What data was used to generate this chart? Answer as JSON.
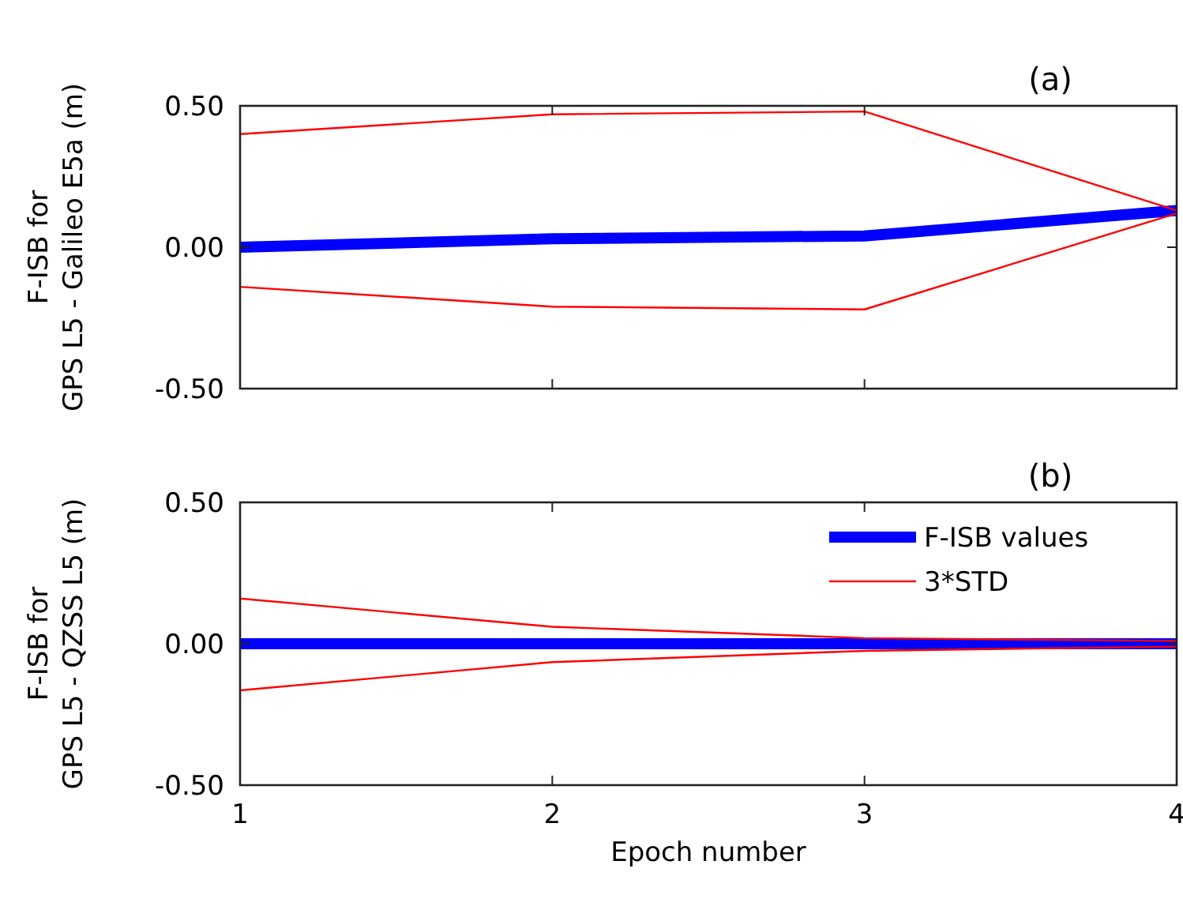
{
  "chart_data": [
    {
      "type": "line",
      "title": "(a)",
      "ylabel": "F-ISB for\nGPS L5 - Galileo E5a (m)",
      "x": [
        1,
        2,
        3,
        4
      ],
      "xlim": [
        1,
        4
      ],
      "xticks": [
        {
          "value": 1,
          "label": null
        },
        {
          "value": 2,
          "label": null
        },
        {
          "value": 3,
          "label": null
        },
        {
          "value": 4,
          "label": null
        }
      ],
      "ylim": [
        -0.5,
        0.5
      ],
      "yticks": [
        {
          "value": -0.5,
          "label": "-0.50"
        },
        {
          "value": 0,
          "label": "0.00"
        },
        {
          "value": 0.5,
          "label": "0.50"
        }
      ],
      "tick_labels": "y",
      "legend": false,
      "grid": false,
      "series": [
        {
          "color": "#0000ff",
          "values": [
            0.0,
            0.03,
            0.04,
            0.13
          ]
        },
        {
          "color": "#ff0000",
          "values": [
            0.4,
            0.47,
            0.48,
            0.13
          ]
        },
        {
          "color": "#ff0000",
          "values": [
            -0.14,
            -0.21,
            -0.22,
            0.12
          ]
        }
      ]
    },
    {
      "type": "line",
      "title": "(b)",
      "xlabel": "Epoch number",
      "ylabel": "F-ISB for\nGPS L5 - QZSS L5 (m)",
      "x": [
        1,
        2,
        3,
        4
      ],
      "xlim": [
        1,
        4
      ],
      "xticks": [
        1,
        2,
        3,
        4
      ],
      "ylim": [
        -0.5,
        0.5
      ],
      "yticks": [
        {
          "value": -0.5,
          "label": "-0.50"
        },
        {
          "value": 0,
          "label": "0.00"
        },
        {
          "value": 0.5,
          "label": "0.50"
        }
      ],
      "legend": "top right",
      "grid": false,
      "series": [
        {
          "name": "F-ISB values",
          "color": "#0000ff",
          "values": [
            0.0,
            0.0,
            0.0,
            0.0
          ]
        },
        {
          "name": "3*STD",
          "color": "#ff0000",
          "values": [
            0.16,
            0.06,
            0.02,
            0.01
          ]
        },
        {
          "color": "#ff0000",
          "values": [
            -0.165,
            -0.065,
            -0.025,
            -0.01
          ]
        }
      ]
    }
  ]
}
